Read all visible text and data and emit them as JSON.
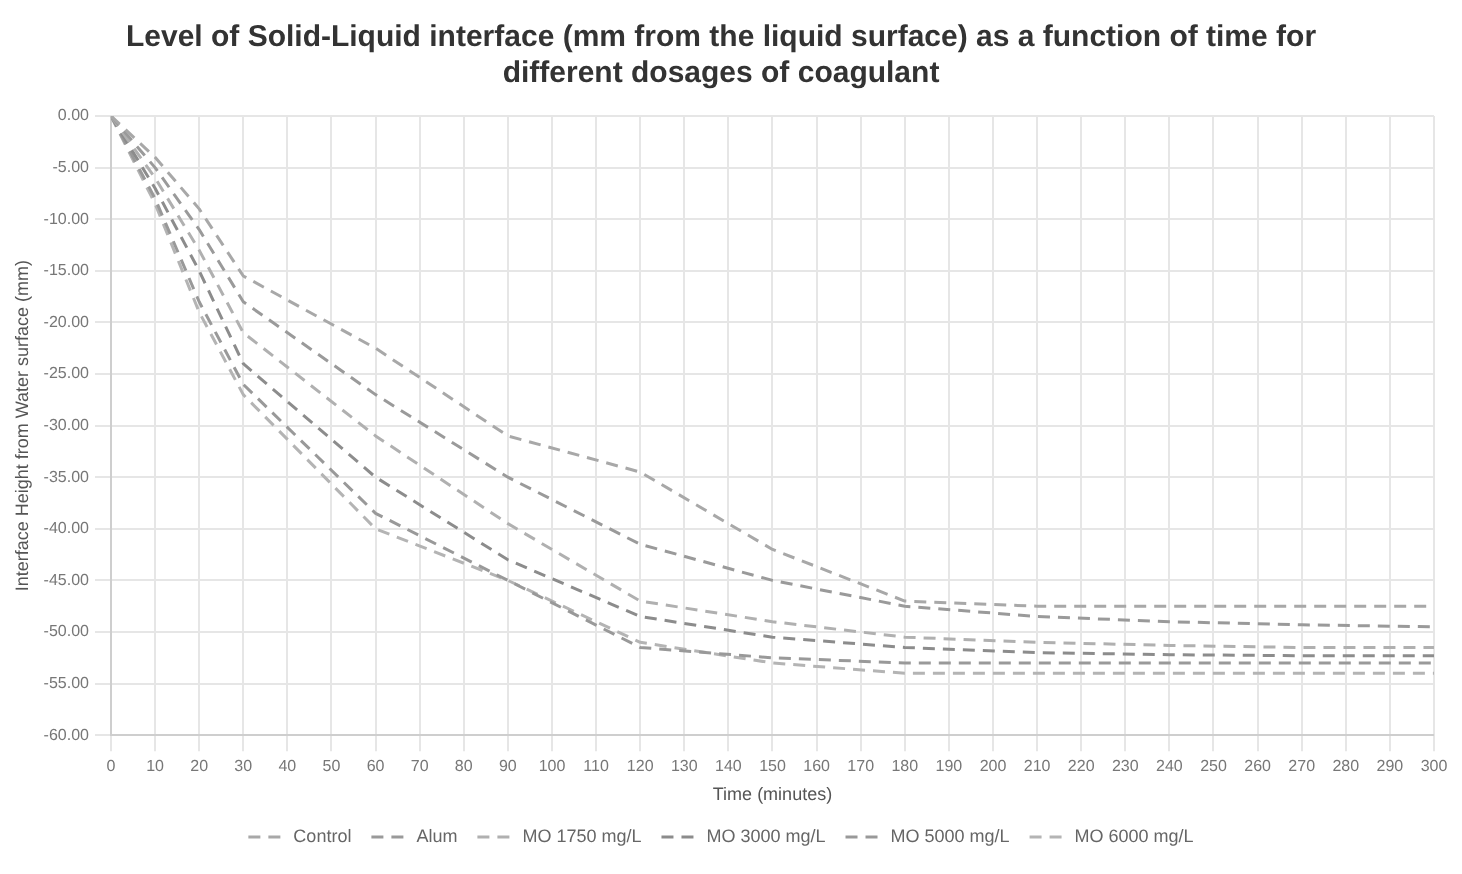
{
  "chart_data": {
    "type": "line",
    "title": "Level of Solid-Liquid interface (mm from the liquid surface) as a function of time for different dosages of coagulant",
    "xlabel": "Time (minutes)",
    "ylabel": "Interface Height from Water surface (mm)",
    "x": [
      0,
      10,
      20,
      30,
      60,
      90,
      120,
      150,
      180,
      210,
      240,
      270,
      300
    ],
    "series": [
      {
        "name": "Control",
        "color": "#a8a8a8",
        "values": [
          0,
          -4,
          -9,
          -15.5,
          -22.5,
          -31,
          -34.5,
          -42,
          -47,
          -47.5,
          -47.5,
          -47.5,
          -47.5
        ]
      },
      {
        "name": "Alum",
        "color": "#9a9a9a",
        "values": [
          0,
          -5,
          -11,
          -18,
          -27,
          -35,
          -41.5,
          -45,
          -47.5,
          -48.5,
          -49,
          -49.3,
          -49.5
        ]
      },
      {
        "name": "MO 1750 mg/L",
        "color": "#b0b0b0",
        "values": [
          0,
          -6,
          -13,
          -21,
          -31,
          -39.5,
          -47,
          -49,
          -50.5,
          -51,
          -51.3,
          -51.5,
          -51.5
        ]
      },
      {
        "name": "MO 3000 mg/L",
        "color": "#8c8c8c",
        "values": [
          0,
          -7,
          -15,
          -24,
          -35,
          -43,
          -48.5,
          -50.5,
          -51.5,
          -52,
          -52.2,
          -52.3,
          -52.3
        ]
      },
      {
        "name": "MO 5000 mg/L",
        "color": "#999999",
        "values": [
          0,
          -8,
          -18,
          -26,
          -38.5,
          -45,
          -51.5,
          -52.5,
          -53,
          -53,
          -53,
          -53,
          -53
        ]
      },
      {
        "name": "MO 6000 mg/L",
        "color": "#b4b4b4",
        "values": [
          0,
          -8.5,
          -19,
          -27,
          -40,
          -45,
          -51,
          -53,
          -54,
          -54,
          -54,
          -54,
          -54
        ]
      }
    ],
    "xlim": [
      0,
      300
    ],
    "xticks": [
      0,
      10,
      20,
      30,
      40,
      50,
      60,
      70,
      80,
      90,
      100,
      110,
      120,
      130,
      140,
      150,
      160,
      170,
      180,
      190,
      200,
      210,
      220,
      230,
      240,
      250,
      260,
      270,
      280,
      290,
      300
    ],
    "ylim": [
      -60,
      0
    ],
    "yticks": [
      {
        "value": 0,
        "label": "0.00"
      },
      {
        "value": -5,
        "label": "-5.00"
      },
      {
        "value": -10,
        "label": "-10.00"
      },
      {
        "value": -15,
        "label": "-15.00"
      },
      {
        "value": -20,
        "label": "-20.00"
      },
      {
        "value": -25,
        "label": "-25.00"
      },
      {
        "value": -30,
        "label": "-30.00"
      },
      {
        "value": -35,
        "label": "-35.00"
      },
      {
        "value": -40,
        "label": "-40.00"
      },
      {
        "value": -45,
        "label": "-45.00"
      },
      {
        "value": -50,
        "label": "-50.00"
      },
      {
        "value": -55,
        "label": "-55.00"
      },
      {
        "value": -60,
        "label": "-60.00"
      }
    ],
    "grid": true,
    "legend": "bottom",
    "marker": "none",
    "line_style": "dashed"
  }
}
